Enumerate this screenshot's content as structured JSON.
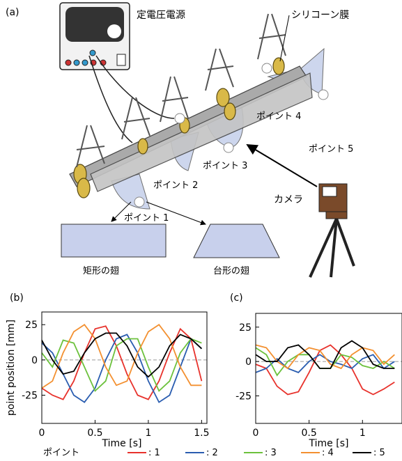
{
  "panel_a": {
    "label": "(a)",
    "power_supply": "定電圧電源",
    "membrane": "シリコーン膜",
    "points": [
      "ポイント 1",
      "ポイント 2",
      "ポイント 3",
      "ポイント 4",
      "ポイント 5"
    ],
    "camera": "カメラ",
    "rect_wing": "矩形の翅",
    "trap_wing": "台形の翅"
  },
  "legend_title": "ポイント",
  "chart_data": [
    {
      "type": "line",
      "panel": "(b)",
      "x_label": "Time [s]",
      "y_label": "point position [mm]",
      "xlim": [
        0,
        1.55
      ],
      "ylim": [
        -45,
        34
      ],
      "xticks": [
        0,
        0.5,
        1,
        1.5
      ],
      "yticks": [
        -25,
        0,
        25
      ],
      "reference_line": 0,
      "x": [
        0,
        0.1,
        0.2,
        0.3,
        0.4,
        0.5,
        0.6,
        0.7,
        0.8,
        0.9,
        1.0,
        1.1,
        1.2,
        1.3,
        1.4,
        1.5
      ],
      "series": [
        {
          "name": ": 1",
          "color": "#e8322c",
          "values": [
            -20,
            -25,
            -28,
            -15,
            5,
            22,
            24,
            10,
            -10,
            -25,
            -28,
            -15,
            5,
            22,
            15,
            -15
          ]
        },
        {
          "name": ": 2",
          "color": "#2a5db0",
          "values": [
            12,
            5,
            -10,
            -25,
            -30,
            -20,
            0,
            15,
            18,
            5,
            -15,
            -30,
            -25,
            -5,
            15,
            8
          ]
        },
        {
          "name": ": 3",
          "color": "#6cc13c",
          "values": [
            5,
            -5,
            14,
            12,
            -5,
            -22,
            -15,
            10,
            15,
            15,
            -5,
            -22,
            -15,
            5,
            15,
            12
          ]
        },
        {
          "name": ": 4",
          "color": "#f39030",
          "values": [
            -20,
            -15,
            5,
            20,
            25,
            15,
            -5,
            -18,
            -15,
            5,
            20,
            25,
            15,
            -5,
            -18,
            -18
          ]
        },
        {
          "name": ": 5",
          "color": "#000000",
          "values": [
            14,
            0,
            -10,
            -8,
            5,
            15,
            19,
            19,
            10,
            -5,
            -12,
            -5,
            10,
            18,
            15,
            8
          ]
        }
      ]
    },
    {
      "type": "line",
      "panel": "(c)",
      "x_label": "Time [s]",
      "xlim": [
        0,
        1.37
      ],
      "ylim": [
        -45,
        35
      ],
      "xticks": [
        0,
        0.5,
        1
      ],
      "yticks": [
        -25,
        0,
        25
      ],
      "reference_line": 0,
      "x": [
        0,
        0.1,
        0.2,
        0.3,
        0.4,
        0.5,
        0.6,
        0.7,
        0.8,
        0.9,
        1.0,
        1.1,
        1.2,
        1.3
      ],
      "series": [
        {
          "color": "#e8322c",
          "values": [
            -2,
            -5,
            -18,
            -24,
            -22,
            -8,
            8,
            12,
            5,
            -5,
            -20,
            -24,
            -20,
            -15
          ]
        },
        {
          "color": "#2a5db0",
          "values": [
            -8,
            -5,
            2,
            -5,
            -8,
            0,
            5,
            0,
            -2,
            -5,
            2,
            5,
            -5,
            0
          ]
        },
        {
          "color": "#6cc13c",
          "values": [
            10,
            5,
            -10,
            0,
            5,
            5,
            -5,
            -5,
            5,
            3,
            -3,
            -5,
            0,
            -5
          ]
        },
        {
          "color": "#f39030",
          "values": [
            12,
            10,
            0,
            -5,
            5,
            10,
            8,
            -2,
            -5,
            5,
            10,
            8,
            -2,
            5
          ]
        },
        {
          "color": "#000000",
          "values": [
            5,
            0,
            0,
            10,
            12,
            5,
            -5,
            -5,
            10,
            15,
            10,
            -2,
            -5,
            -5
          ]
        }
      ]
    }
  ]
}
